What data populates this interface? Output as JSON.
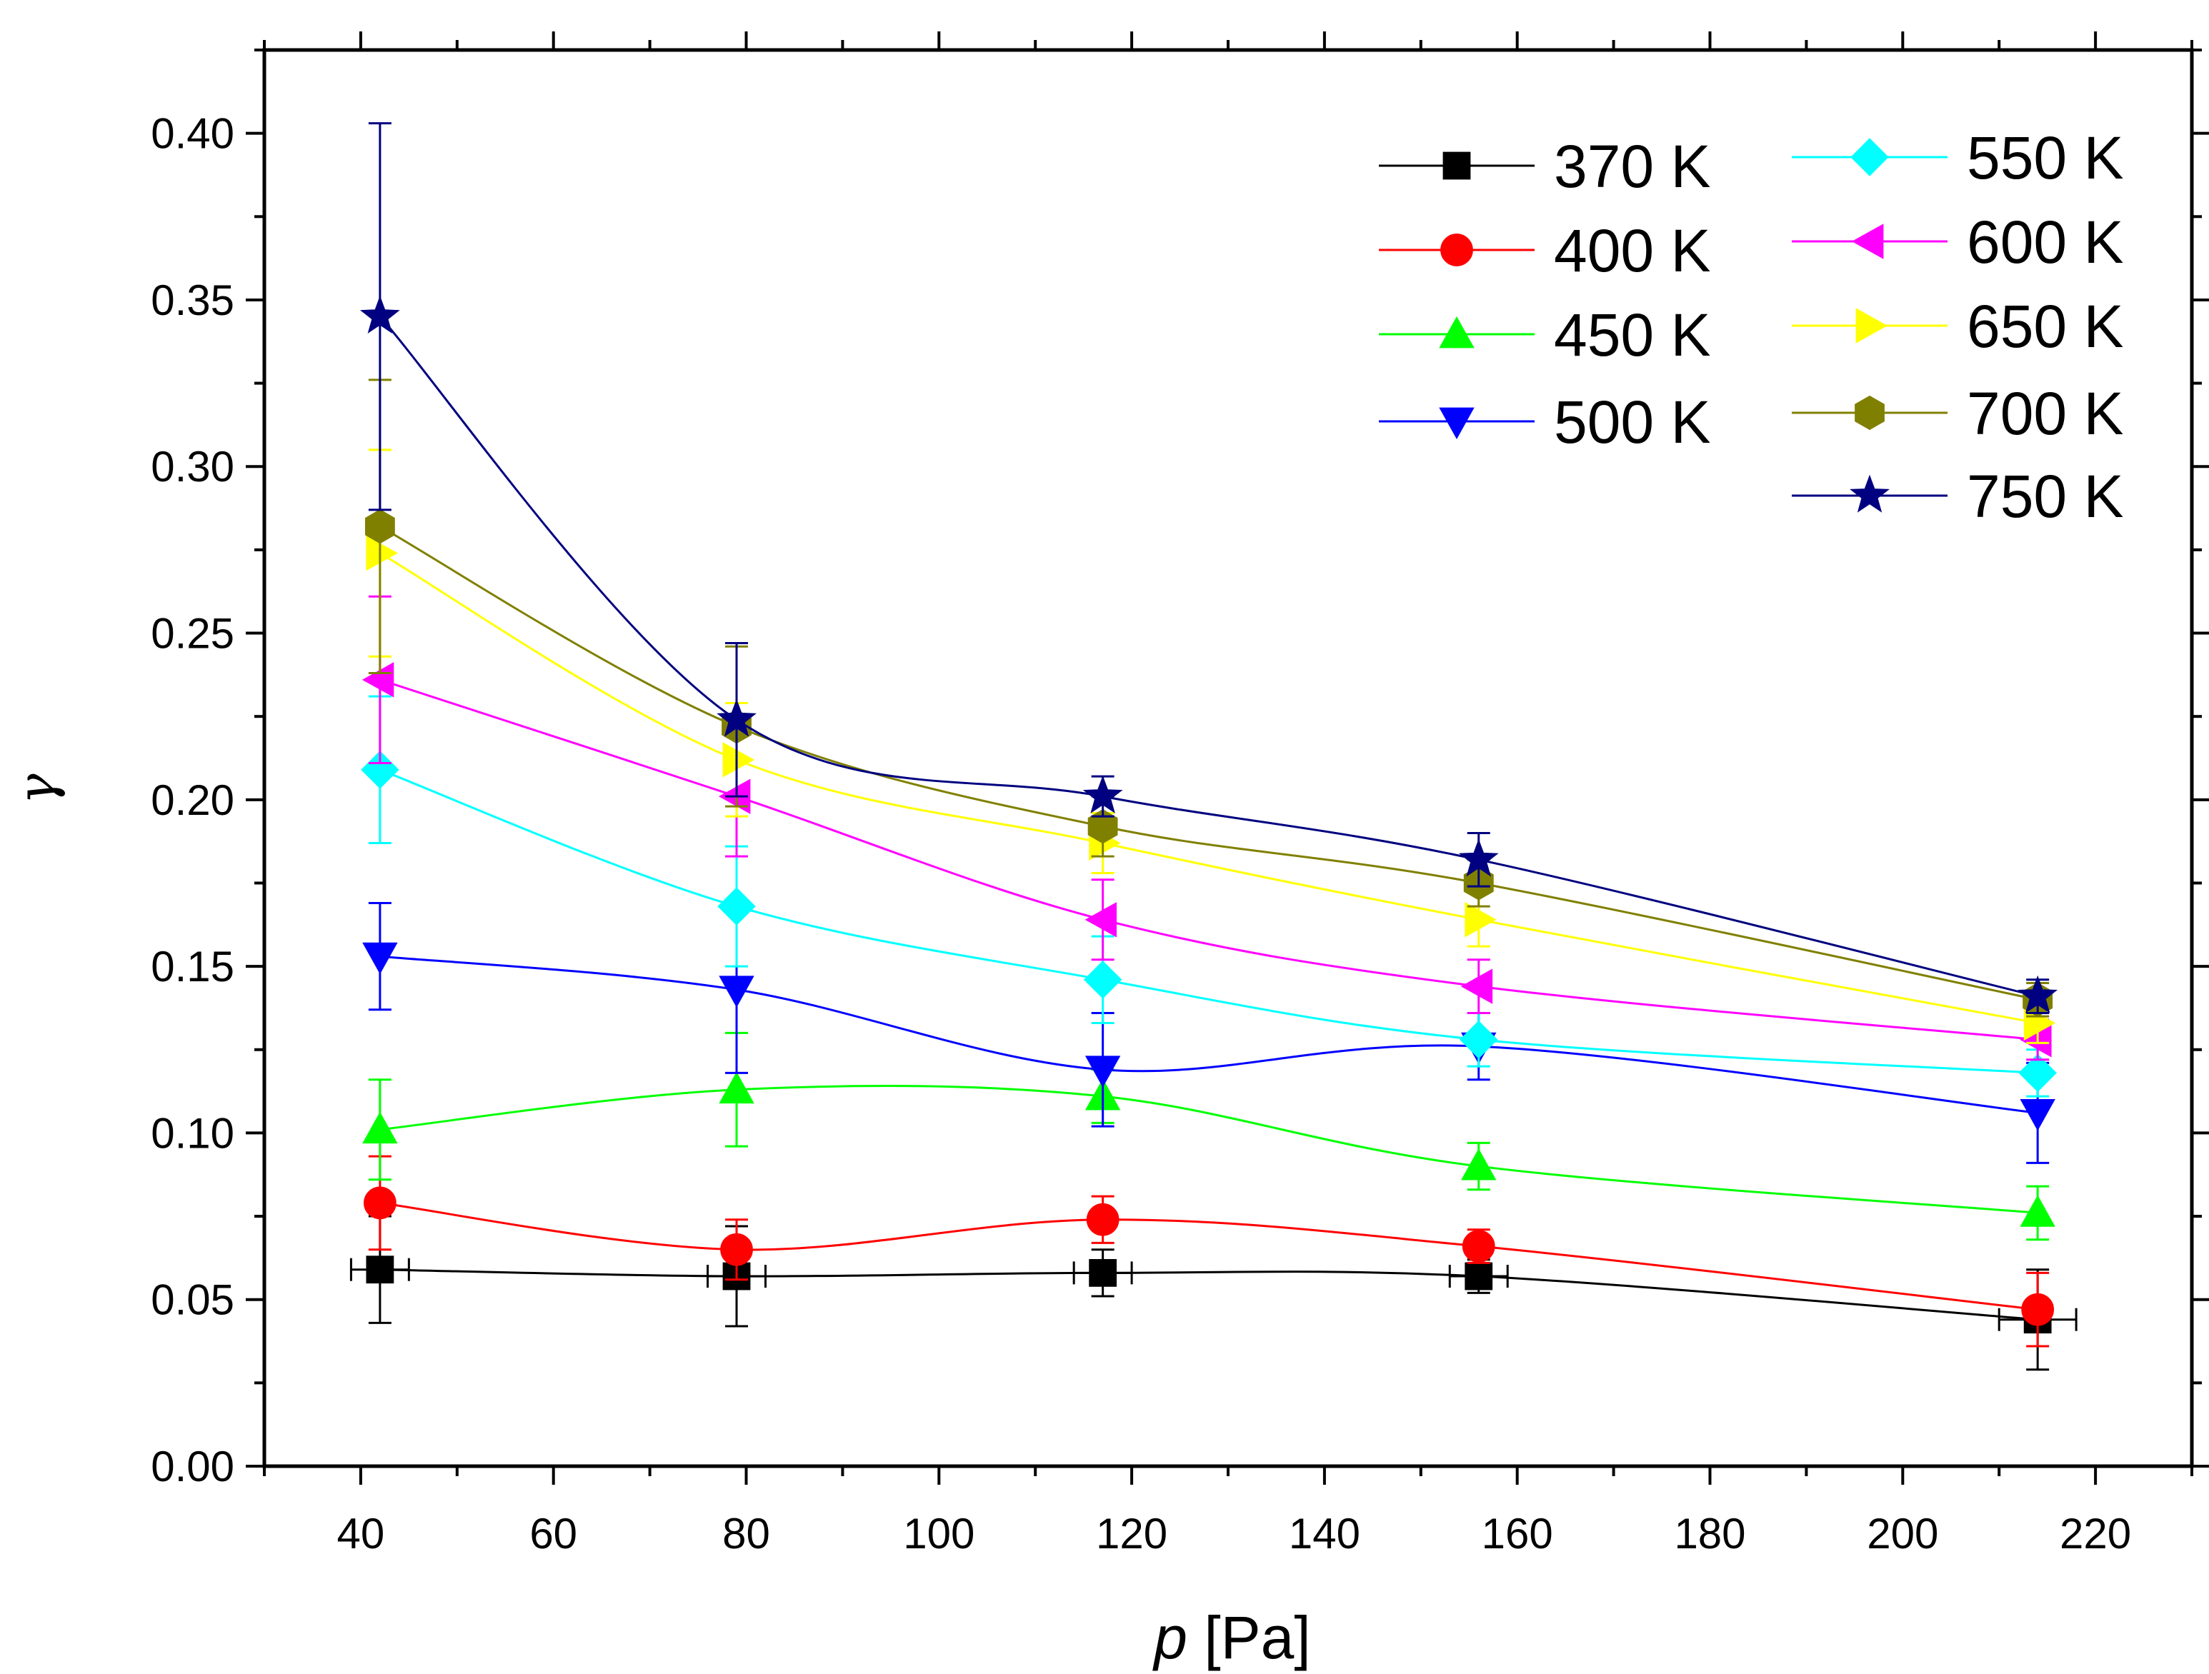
{
  "chart_data": {
    "type": "line",
    "xlabel_var": "p",
    "xlabel_unit": "[Pa]",
    "ylabel": "γ",
    "xlim": [
      30,
      230
    ],
    "ylim": [
      0.0,
      0.425
    ],
    "xticks": [
      "40",
      "60",
      "80",
      "100",
      "120",
      "140",
      "160",
      "180",
      "200",
      "220"
    ],
    "yticks": [
      "0.00",
      "0.05",
      "0.10",
      "0.15",
      "0.20",
      "0.25",
      "0.30",
      "0.35",
      "0.40"
    ],
    "x": [
      42,
      79,
      117,
      156,
      214
    ],
    "x_err": [
      3,
      3,
      3,
      3,
      4
    ],
    "series": [
      {
        "name": "370 K",
        "color": "#000000",
        "marker": "square",
        "values": [
          0.059,
          0.057,
          0.058,
          0.057,
          0.044
        ],
        "errors": [
          0.016,
          0.015,
          0.007,
          0.005,
          0.015
        ]
      },
      {
        "name": "400 K",
        "color": "#ff0000",
        "marker": "circle",
        "values": [
          0.079,
          0.065,
          0.074,
          0.066,
          0.047
        ],
        "errors": [
          0.014,
          0.009,
          0.007,
          0.005,
          0.011
        ]
      },
      {
        "name": "450 K",
        "color": "#00ff00",
        "marker": "triangle-up",
        "values": [
          0.101,
          0.113,
          0.111,
          0.09,
          0.076
        ],
        "errors": [
          0.015,
          0.017,
          0.008,
          0.007,
          0.008
        ]
      },
      {
        "name": "500 K",
        "color": "#0000ff",
        "marker": "triangle-down",
        "values": [
          0.153,
          0.143,
          0.119,
          0.126,
          0.106
        ],
        "errors": [
          0.016,
          0.025,
          0.017,
          0.01,
          0.015
        ]
      },
      {
        "name": "550 K",
        "color": "#00ffff",
        "marker": "diamond",
        "values": [
          0.209,
          0.168,
          0.146,
          0.128,
          0.118
        ],
        "errors": [
          0.022,
          0.018,
          0.013,
          0.008,
          0.007
        ]
      },
      {
        "name": "600 K",
        "color": "#ff00ff",
        "marker": "triangle-left",
        "values": [
          0.236,
          0.201,
          0.164,
          0.144,
          0.128
        ],
        "errors": [
          0.025,
          0.018,
          0.012,
          0.008,
          0.006
        ]
      },
      {
        "name": "650 K",
        "color": "#ffff00",
        "marker": "triangle-right",
        "values": [
          0.274,
          0.212,
          0.187,
          0.164,
          0.133
        ],
        "errors": [
          0.031,
          0.017,
          0.009,
          0.008,
          0.006
        ]
      },
      {
        "name": "700 K",
        "color": "#808000",
        "marker": "hexagon",
        "values": [
          0.282,
          0.222,
          0.192,
          0.175,
          0.14
        ],
        "errors": [
          0.044,
          0.024,
          0.009,
          0.007,
          0.005
        ]
      },
      {
        "name": "750 K",
        "color": "#000080",
        "marker": "star",
        "values": [
          0.345,
          0.224,
          0.201,
          0.182,
          0.141
        ],
        "errors": [
          0.058,
          0.023,
          0.006,
          0.008,
          0.005
        ]
      }
    ]
  }
}
